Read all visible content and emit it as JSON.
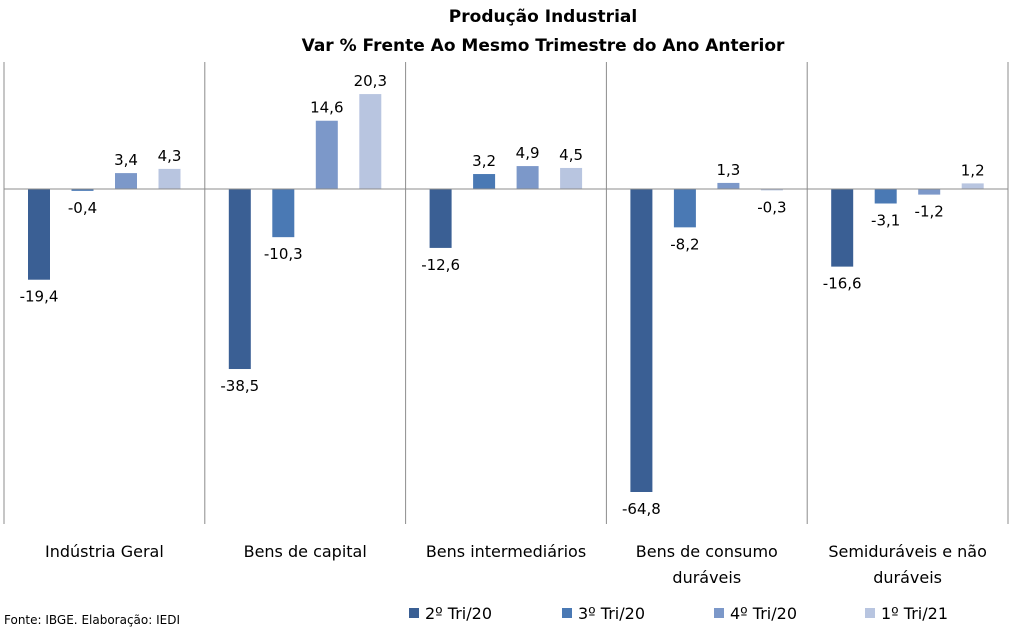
{
  "chart_data": {
    "type": "bar",
    "title": "Produção Industrial",
    "subtitle": "Var % Frente Ao Mesmo Trimestre do Ano Anterior",
    "categories": [
      [
        "Indústria Geral"
      ],
      [
        "Bens de capital"
      ],
      [
        "Bens intermediários"
      ],
      [
        "Bens de consumo",
        "duráveis"
      ],
      [
        "Semiduráveis e não",
        "duráveis"
      ]
    ],
    "series": [
      {
        "name": "2º Tri/20",
        "color": "#3a5f94",
        "values": [
          -19.4,
          -38.5,
          -12.6,
          -64.8,
          -16.6
        ],
        "labels": [
          "-19,4",
          "-38,5",
          "-12,6",
          "-64,8",
          "-16,6"
        ]
      },
      {
        "name": "3º Tri/20",
        "color": "#4a79b4",
        "values": [
          -0.4,
          -10.3,
          3.2,
          -8.2,
          -3.1
        ],
        "labels": [
          "-0,4",
          "-10,3",
          "3,2",
          "-8,2",
          "-3,1"
        ]
      },
      {
        "name": "4º Tri/20",
        "color": "#7c98c9",
        "values": [
          3.4,
          14.6,
          4.9,
          1.3,
          -1.2
        ],
        "labels": [
          "3,4",
          "14,6",
          "4,9",
          "1,3",
          "-1,2"
        ]
      },
      {
        "name": "1º Tri/21",
        "color": "#b8c5e0",
        "values": [
          4.3,
          20.3,
          4.5,
          -0.3,
          1.2
        ],
        "labels": [
          "4,3",
          "20,3",
          "4,5",
          "-0,3",
          "1,2"
        ]
      }
    ],
    "ylim": [
      -72,
      28
    ],
    "grid": false,
    "legend": "bottom"
  },
  "source": "Fonte: IBGE. Elaboração: IEDI"
}
